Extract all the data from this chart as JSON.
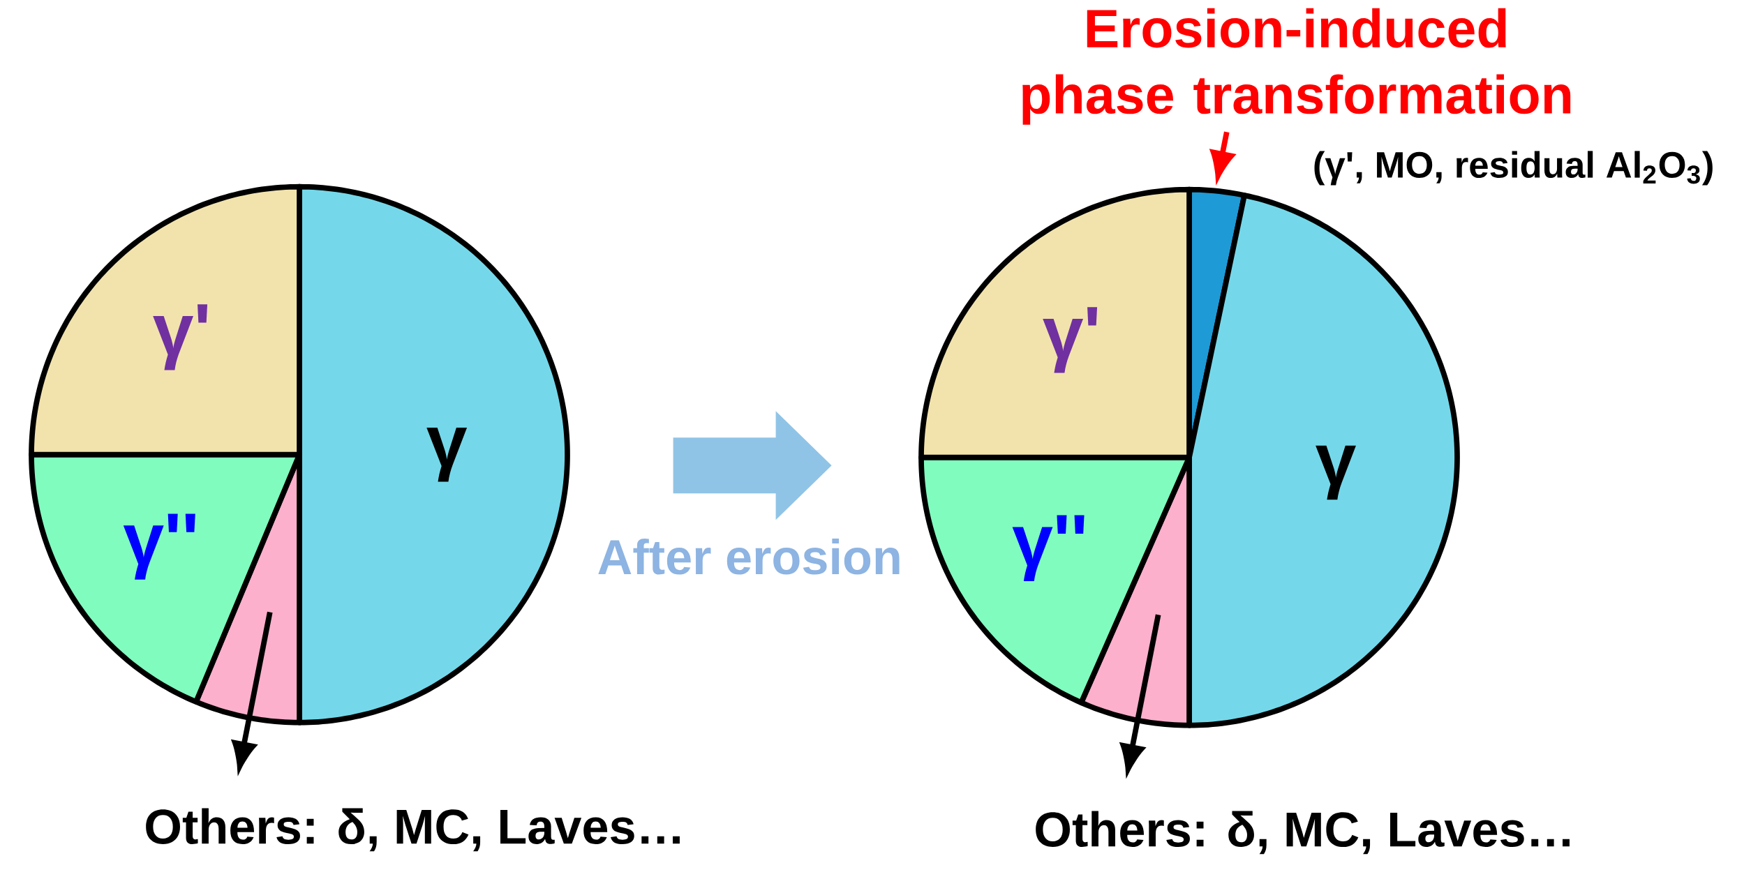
{
  "chart_data": [
    {
      "type": "pie",
      "categories": [
        "γ",
        "Others: δ, MC, Laves…",
        "γ''",
        "γ'"
      ],
      "values": [
        50,
        6.3,
        18.7,
        25
      ],
      "colors": [
        "#74d8ea",
        "#fcb0cc",
        "#80fcbf",
        "#f2e3ad"
      ]
    },
    {
      "type": "pie",
      "categories": [
        "Erosion-induced phase transformation",
        "γ",
        "Others: δ, MC, Laves…",
        "γ''",
        "γ'"
      ],
      "values": [
        3.3,
        46.7,
        6.6,
        18.4,
        25
      ],
      "colors": [
        "#1e9ad6",
        "#74d8ea",
        "#fcb0cc",
        "#80fcbf",
        "#f2e3ad"
      ],
      "annotations": [
        "(γ', MO, residual Al$_{2}$O$_{3}$)",
        "After erosion"
      ]
    }
  ]
}
